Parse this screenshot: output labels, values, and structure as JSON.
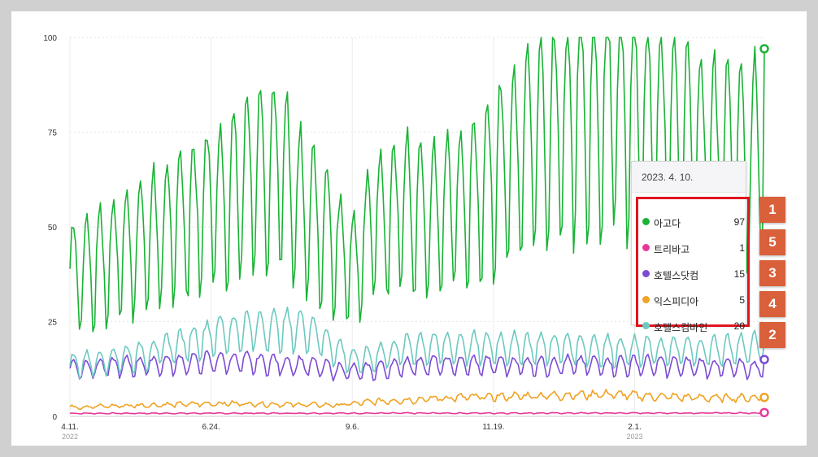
{
  "chart_data": {
    "type": "line",
    "ylim": [
      0,
      100
    ],
    "y_ticks": [
      "0",
      "25",
      "50",
      "75",
      "100"
    ],
    "x_ticks": [
      {
        "label": "4.11.",
        "year": "2022",
        "t": 0
      },
      {
        "label": "6.24.",
        "year": "",
        "t": 74
      },
      {
        "label": "9.6.",
        "year": "",
        "t": 148
      },
      {
        "label": "11.19.",
        "year": "",
        "t": 222
      },
      {
        "label": "2.1.",
        "year": "2023",
        "t": 296
      }
    ],
    "t_max": 364,
    "series": [
      {
        "key": "agoda",
        "name": "아고다",
        "color": "#19b335",
        "end_value": 97,
        "trend": [
          [
            0,
            40
          ],
          [
            20,
            44
          ],
          [
            40,
            50
          ],
          [
            60,
            55
          ],
          [
            80,
            62
          ],
          [
            100,
            68
          ],
          [
            110,
            70
          ],
          [
            120,
            60
          ],
          [
            130,
            55
          ],
          [
            140,
            47
          ],
          [
            150,
            42
          ],
          [
            160,
            55
          ],
          [
            175,
            60
          ],
          [
            190,
            56
          ],
          [
            210,
            62
          ],
          [
            230,
            72
          ],
          [
            250,
            80
          ],
          [
            270,
            87
          ],
          [
            290,
            88
          ],
          [
            300,
            84
          ],
          [
            320,
            80
          ],
          [
            340,
            74
          ],
          [
            355,
            72
          ],
          [
            364,
            80
          ]
        ],
        "amp": 0.3,
        "noise": 0.05
      },
      {
        "key": "hotelscombined",
        "name": "호텔스컴바인",
        "color": "#6cc9c0",
        "end_value": 20,
        "trend": [
          [
            0,
            14
          ],
          [
            40,
            17
          ],
          [
            60,
            20
          ],
          [
            80,
            23
          ],
          [
            100,
            24
          ],
          [
            125,
            24
          ],
          [
            140,
            18
          ],
          [
            150,
            15
          ],
          [
            180,
            19
          ],
          [
            220,
            19
          ],
          [
            260,
            19
          ],
          [
            300,
            18
          ],
          [
            330,
            18
          ],
          [
            364,
            19
          ]
        ],
        "amp": 0.18,
        "noise": 0.05
      },
      {
        "key": "hotelsdotcom",
        "name": "호텔스닷컴",
        "color": "#7b4bd4",
        "end_value": 15,
        "trend": [
          [
            0,
            13
          ],
          [
            40,
            14
          ],
          [
            80,
            15
          ],
          [
            120,
            14
          ],
          [
            150,
            12
          ],
          [
            180,
            14
          ],
          [
            240,
            14
          ],
          [
            300,
            14
          ],
          [
            364,
            13
          ]
        ],
        "amp": 0.15,
        "noise": 0.05
      },
      {
        "key": "expedia",
        "name": "익스피디아",
        "color": "#f0a221",
        "end_value": 5,
        "trend": [
          [
            0,
            2.5
          ],
          [
            40,
            3
          ],
          [
            80,
            3.5
          ],
          [
            140,
            3
          ],
          [
            160,
            4
          ],
          [
            200,
            5
          ],
          [
            240,
            5.5
          ],
          [
            280,
            6
          ],
          [
            300,
            5.5
          ],
          [
            330,
            5
          ],
          [
            364,
            5
          ]
        ],
        "amp": 0.12,
        "noise": 0.12
      },
      {
        "key": "trivago",
        "name": "트리바고",
        "color": "#e6399b",
        "end_value": 1,
        "trend": [
          [
            0,
            0.8
          ],
          [
            364,
            0.9
          ]
        ],
        "amp": 0.1,
        "noise": 0.1
      }
    ]
  },
  "tooltip": {
    "date": "2023. 4. 10.",
    "rows": [
      {
        "name": "아고다",
        "value": "97",
        "color": "#19b335",
        "badge": "1"
      },
      {
        "name": "트리바고",
        "value": "1",
        "color": "#e6399b",
        "badge": "5"
      },
      {
        "name": "호텔스닷컴",
        "value": "15",
        "color": "#7b4bd4",
        "badge": "3"
      },
      {
        "name": "익스피디아",
        "value": "5",
        "color": "#f0a221",
        "badge": "4"
      },
      {
        "name": "호텔스컴바인",
        "value": "20",
        "color": "#6cc9c0",
        "badge": "2"
      }
    ]
  }
}
